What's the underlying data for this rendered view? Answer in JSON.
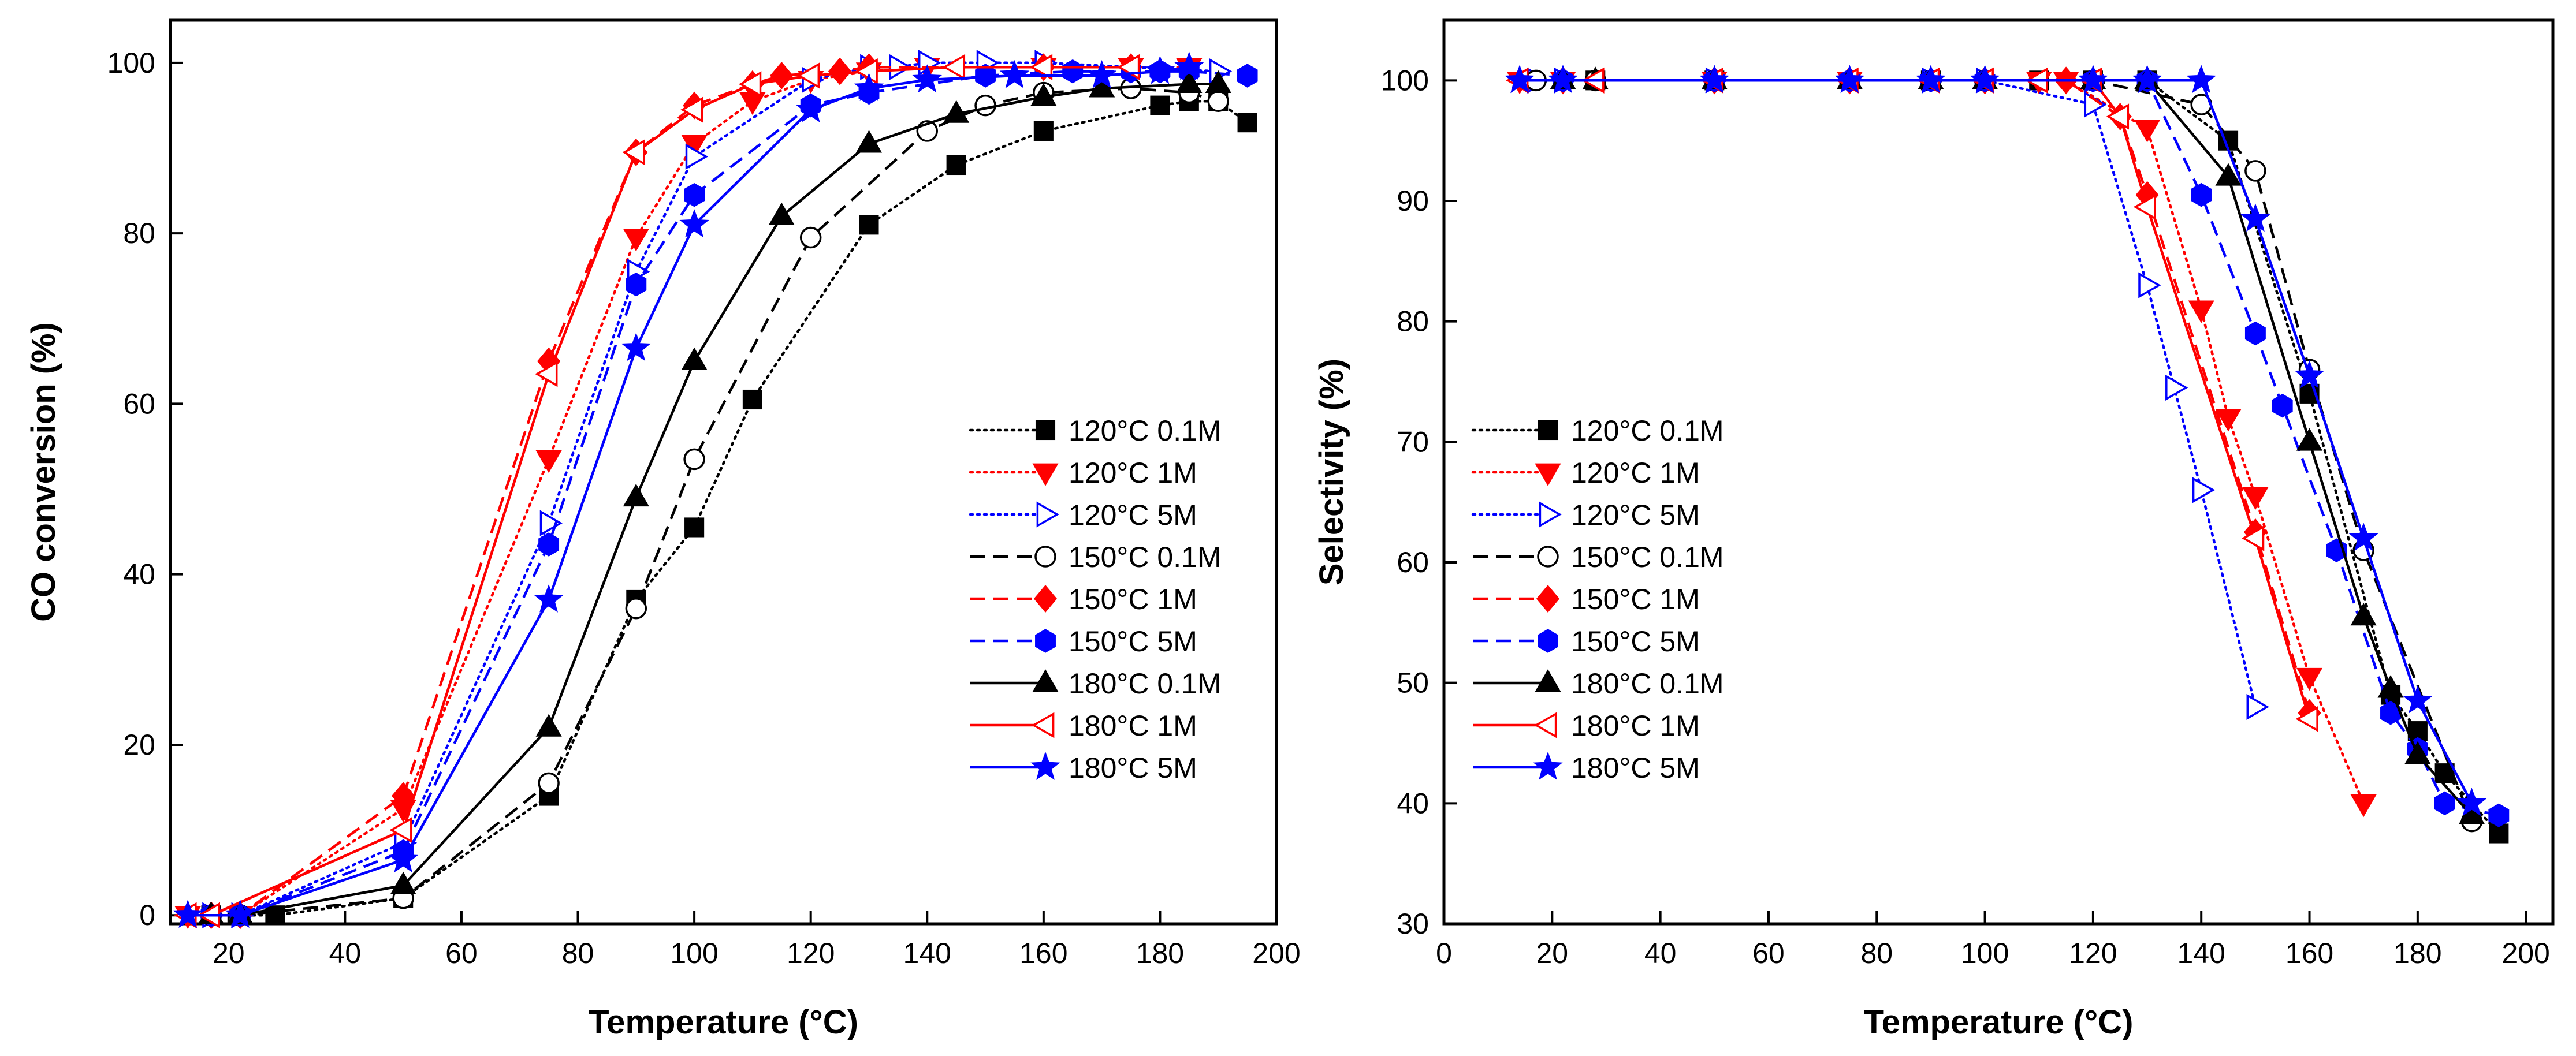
{
  "figure": {
    "panels": [
      "left",
      "right"
    ]
  },
  "chart_data": [
    {
      "type": "line",
      "xlabel": "Temperature (°C)",
      "ylabel": "CO conversion (%)",
      "xlim": [
        10,
        200
      ],
      "ylim": [
        -1,
        105
      ],
      "xticks": [
        20,
        40,
        60,
        80,
        100,
        120,
        140,
        160,
        180,
        200
      ],
      "yticks": [
        0,
        20,
        40,
        60,
        80,
        100
      ],
      "legend_position": "lower-right",
      "series": [
        {
          "name": "120°C 0.1M",
          "color": "#000000",
          "dash": "dotted",
          "marker": "square",
          "fill": true,
          "x": [
            17,
            28,
            50,
            75,
            90,
            100,
            110,
            130,
            145,
            160,
            180,
            185,
            190,
            195
          ],
          "y": [
            0,
            0,
            2,
            14,
            37,
            45.5,
            60.5,
            81,
            88,
            92,
            95,
            95.5,
            95.5,
            93
          ]
        },
        {
          "name": "120°C 1M",
          "color": "#ff0000",
          "dash": "dotted",
          "marker": "triangle-down",
          "fill": true,
          "x": [
            13,
            22,
            50,
            75,
            90,
            100,
            110,
            120,
            130,
            140,
            160,
            175,
            185
          ],
          "y": [
            0,
            0,
            12.5,
            53.5,
            79.5,
            90.5,
            95.5,
            98,
            99,
            99.5,
            99.5,
            99.5,
            99.5
          ]
        },
        {
          "name": "120°C 5M",
          "color": "#0000ff",
          "dash": "dotted",
          "marker": "triangle-right",
          "fill": false,
          "x": [
            17,
            22,
            50,
            75,
            90,
            100,
            120,
            130,
            135,
            140,
            150,
            160,
            190
          ],
          "y": [
            0,
            0,
            8.5,
            46,
            75.5,
            89,
            98,
            99.5,
            99.5,
            100,
            100,
            100,
            99
          ]
        },
        {
          "name": "150°C 0.1M",
          "color": "#000000",
          "dash": "dashed",
          "marker": "circle",
          "fill": false,
          "x": [
            17,
            22,
            50,
            75,
            90,
            100,
            120,
            140,
            150,
            160,
            175,
            185,
            190
          ],
          "y": [
            0,
            0,
            2,
            15.5,
            36,
            53.5,
            79.5,
            92,
            95,
            96.5,
            97,
            96.5,
            95.5
          ]
        },
        {
          "name": "150°C 1M",
          "color": "#ff0000",
          "dash": "dashed",
          "marker": "diamond",
          "fill": true,
          "x": [
            17,
            22,
            50,
            75,
            90,
            100,
            110,
            115,
            125,
            130,
            160,
            175
          ],
          "y": [
            0,
            0,
            14,
            65,
            89.5,
            95,
            97.5,
            98.5,
            99,
            99.5,
            99.5,
            99.5
          ]
        },
        {
          "name": "150°C 5M",
          "color": "#0000ff",
          "dash": "dashed",
          "marker": "hexagon",
          "fill": true,
          "x": [
            17,
            22,
            50,
            75,
            90,
            100,
            120,
            130,
            150,
            165,
            175,
            180,
            185,
            195
          ],
          "y": [
            0,
            0,
            7.5,
            43.5,
            74,
            84.5,
            95,
            96.5,
            98.5,
            99,
            99,
            99,
            99,
            98.5
          ]
        },
        {
          "name": "180°C 0.1M",
          "color": "#000000",
          "dash": "solid",
          "marker": "triangle-up",
          "fill": true,
          "x": [
            17,
            22,
            50,
            75,
            90,
            100,
            115,
            130,
            145,
            160,
            170,
            185,
            190
          ],
          "y": [
            0,
            0,
            3.5,
            22,
            49,
            65,
            82,
            90.5,
            94,
            96,
            97,
            97.5,
            97.5
          ]
        },
        {
          "name": "180°C 1M",
          "color": "#ff0000",
          "dash": "solid",
          "marker": "triangle-left",
          "fill": false,
          "x": [
            13,
            17,
            50,
            75,
            90,
            100,
            110,
            120,
            130,
            145,
            160,
            175
          ],
          "y": [
            0,
            0,
            10,
            63.5,
            89.5,
            94.5,
            97.5,
            98.5,
            99,
            99.5,
            99.5,
            99.5
          ]
        },
        {
          "name": "180°C 5M",
          "color": "#0000ff",
          "dash": "solid",
          "marker": "star",
          "fill": true,
          "x": [
            13,
            22,
            50,
            75,
            90,
            100,
            120,
            130,
            140,
            155,
            170,
            180,
            185
          ],
          "y": [
            0,
            0,
            6.5,
            37,
            66.5,
            81,
            94.5,
            97,
            98,
            98.5,
            98.5,
            99,
            99.5
          ]
        }
      ]
    },
    {
      "type": "line",
      "xlabel": "Temperature (°C)",
      "ylabel": "Selectivity (%)",
      "xlim": [
        0,
        205
      ],
      "ylim": [
        30,
        105
      ],
      "xticks": [
        0,
        20,
        40,
        60,
        80,
        100,
        120,
        140,
        160,
        180,
        200
      ],
      "yticks": [
        30,
        40,
        50,
        60,
        70,
        80,
        90,
        100
      ],
      "legend_position": "lower-left",
      "series": [
        {
          "name": "120°C 0.1M",
          "color": "#000000",
          "dash": "dotted",
          "marker": "square",
          "fill": true,
          "x": [
            28,
            50,
            90,
            110,
            120,
            130,
            145,
            160,
            175,
            180,
            185,
            195
          ],
          "y": [
            100,
            100,
            100,
            100,
            100,
            100,
            95,
            74,
            49,
            46,
            42.5,
            37.5
          ]
        },
        {
          "name": "120°C 1M",
          "color": "#ff0000",
          "dash": "dotted",
          "marker": "triangle-down",
          "fill": true,
          "x": [
            14,
            22,
            50,
            75,
            110,
            115,
            130,
            140,
            145,
            150,
            160,
            170
          ],
          "y": [
            100,
            100,
            100,
            100,
            100,
            100,
            96,
            81,
            72,
            65.5,
            50.5,
            40
          ]
        },
        {
          "name": "120°C 5M",
          "color": "#0000ff",
          "dash": "dotted",
          "marker": "triangle-right",
          "fill": false,
          "x": [
            17,
            22,
            50,
            90,
            100,
            120,
            130,
            135,
            140,
            150
          ],
          "y": [
            100,
            100,
            100,
            100,
            100,
            98,
            83,
            74.5,
            66,
            48
          ]
        },
        {
          "name": "150°C 0.1M",
          "color": "#000000",
          "dash": "dashed",
          "marker": "circle",
          "fill": false,
          "x": [
            17,
            28,
            50,
            90,
            100,
            120,
            140,
            150,
            160,
            170,
            190
          ],
          "y": [
            100,
            100,
            100,
            100,
            100,
            100,
            98,
            92.5,
            76,
            61,
            38.5
          ]
        },
        {
          "name": "150°C 1M",
          "color": "#ff0000",
          "dash": "dashed",
          "marker": "diamond",
          "fill": true,
          "x": [
            22,
            50,
            75,
            100,
            115,
            125,
            130,
            150,
            160
          ],
          "y": [
            100,
            100,
            100,
            100,
            100,
            97,
            90.5,
            62.5,
            47.5
          ]
        },
        {
          "name": "150°C 5M",
          "color": "#0000ff",
          "dash": "dashed",
          "marker": "hexagon",
          "fill": true,
          "x": [
            22,
            50,
            75,
            90,
            100,
            120,
            130,
            140,
            150,
            155,
            165,
            175,
            180,
            185,
            195
          ],
          "y": [
            100,
            100,
            100,
            100,
            100,
            100,
            100,
            90.5,
            79,
            73,
            61,
            47.5,
            44.5,
            40,
            39
          ]
        },
        {
          "name": "180°C 0.1M",
          "color": "#000000",
          "dash": "solid",
          "marker": "triangle-up",
          "fill": true,
          "x": [
            22,
            28,
            50,
            75,
            90,
            100,
            120,
            130,
            145,
            160,
            170,
            175,
            180,
            190
          ],
          "y": [
            100,
            100,
            100,
            100,
            100,
            100,
            100,
            100,
            92,
            70,
            55.5,
            49.5,
            44,
            39
          ]
        },
        {
          "name": "180°C 1M",
          "color": "#ff0000",
          "dash": "solid",
          "marker": "triangle-left",
          "fill": false,
          "x": [
            14,
            28,
            50,
            75,
            90,
            100,
            110,
            120,
            125,
            130,
            150,
            160
          ],
          "y": [
            100,
            100,
            100,
            100,
            100,
            100,
            100,
            100,
            97,
            89.5,
            62,
            47
          ]
        },
        {
          "name": "180°C 5M",
          "color": "#0000ff",
          "dash": "solid",
          "marker": "star",
          "fill": true,
          "x": [
            14,
            22,
            50,
            75,
            90,
            100,
            120,
            130,
            140,
            150,
            160,
            170,
            180,
            190
          ],
          "y": [
            100,
            100,
            100,
            100,
            100,
            100,
            100,
            100,
            100,
            88.5,
            75.5,
            62,
            48.5,
            40
          ]
        }
      ]
    }
  ]
}
